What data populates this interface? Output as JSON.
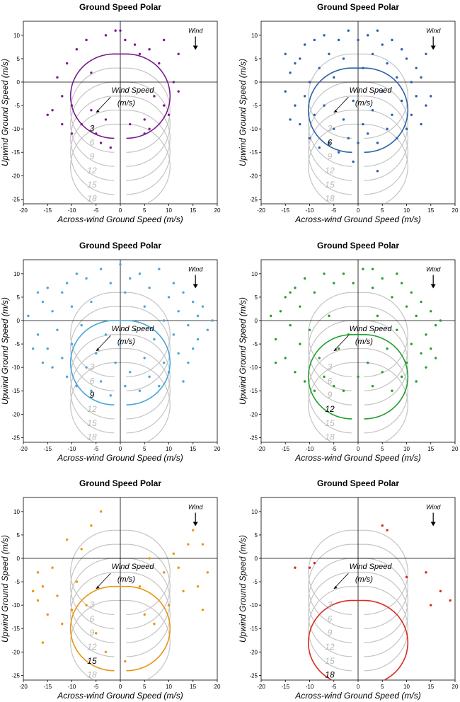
{
  "chart_data": [
    {
      "type": "scatter",
      "title": "Ground Speed Polar",
      "xlabel": "Across-wind Ground Speed (m/s)",
      "ylabel": "Upwind Ground Speed (m/s)",
      "xlim": [
        -20,
        20
      ],
      "ylim": [
        -26,
        13
      ],
      "xticks": [
        -20,
        -15,
        -10,
        -5,
        0,
        5,
        10,
        15,
        20
      ],
      "yticks": [
        10,
        5,
        0,
        -5,
        -10,
        -15,
        -20,
        -25
      ],
      "wind_label": "Wind",
      "annotation": [
        "Wind Speed",
        "(m/s)"
      ],
      "airspeed": 9,
      "reference_wind_speeds": [
        "3",
        "6",
        "9",
        "12",
        "15",
        "18"
      ],
      "highlight_wind_speed": "3",
      "color": "#7b1c8f",
      "points": [
        [
          -13,
          1
        ],
        [
          -12,
          -3
        ],
        [
          -11,
          4
        ],
        [
          -10,
          -5
        ],
        [
          -9,
          7
        ],
        [
          -8,
          -9
        ],
        [
          -7,
          9
        ],
        [
          -6,
          2
        ],
        [
          -5,
          -11
        ],
        [
          -4,
          -13
        ],
        [
          -3,
          10
        ],
        [
          -2,
          -14
        ],
        [
          -1,
          11
        ],
        [
          0,
          11
        ],
        [
          1,
          9
        ],
        [
          2,
          -9
        ],
        [
          3,
          8
        ],
        [
          4,
          6
        ],
        [
          5,
          -8
        ],
        [
          6,
          7
        ],
        [
          7,
          -3
        ],
        [
          8,
          4
        ],
        [
          9,
          -5
        ],
        [
          10,
          -7
        ],
        [
          11,
          0
        ],
        [
          12,
          -2
        ],
        [
          -14,
          -6
        ],
        [
          -15,
          -7
        ],
        [
          -10,
          -11
        ],
        [
          -12,
          -9
        ],
        [
          -3,
          -8
        ],
        [
          -6,
          -6
        ],
        [
          5,
          -11
        ],
        [
          6,
          -10
        ],
        [
          9,
          9
        ],
        [
          12,
          6
        ]
      ]
    },
    {
      "type": "scatter",
      "title": "Ground Speed Polar",
      "xlabel": "Across-wind Ground Speed (m/s)",
      "ylabel": "Upwind Ground Speed (m/s)",
      "xlim": [
        -20,
        20
      ],
      "ylim": [
        -26,
        13
      ],
      "xticks": [
        -20,
        -15,
        -10,
        -5,
        0,
        5,
        10,
        15,
        20
      ],
      "yticks": [
        10,
        5,
        0,
        -5,
        -10,
        -15,
        -20,
        -25
      ],
      "wind_label": "Wind",
      "annotation": [
        "Wind Speed",
        "(m/s)"
      ],
      "airspeed": 9,
      "reference_wind_speeds": [
        "3",
        "6",
        "9",
        "12",
        "15",
        "18"
      ],
      "highlight_wind_speed": "6",
      "color": "#2b62a8",
      "points": [
        [
          -14,
          2
        ],
        [
          -13,
          -5
        ],
        [
          -12,
          5
        ],
        [
          -12,
          -9
        ],
        [
          -11,
          8
        ],
        [
          -11,
          -3
        ],
        [
          -10,
          -12
        ],
        [
          -10,
          0
        ],
        [
          -9,
          9
        ],
        [
          -9,
          -7
        ],
        [
          -8,
          -14
        ],
        [
          -8,
          3
        ],
        [
          -7,
          10
        ],
        [
          -7,
          -5
        ],
        [
          -6,
          -13
        ],
        [
          -6,
          6
        ],
        [
          -5,
          -10
        ],
        [
          -5,
          1
        ],
        [
          -4,
          9
        ],
        [
          -4,
          -15
        ],
        [
          -3,
          -8
        ],
        [
          -3,
          5
        ],
        [
          -2,
          11
        ],
        [
          -2,
          -12
        ],
        [
          -1,
          -4
        ],
        [
          0,
          9
        ],
        [
          0,
          -13
        ],
        [
          1,
          3
        ],
        [
          1,
          -9
        ],
        [
          2,
          10
        ],
        [
          2,
          -11
        ],
        [
          3,
          -6
        ],
        [
          3,
          6
        ],
        [
          4,
          11
        ],
        [
          4,
          -13
        ],
        [
          5,
          -2
        ],
        [
          5,
          8
        ],
        [
          6,
          -10
        ],
        [
          6,
          4
        ],
        [
          7,
          9
        ],
        [
          7,
          -7
        ],
        [
          8,
          1
        ],
        [
          8,
          -12
        ],
        [
          9,
          7
        ],
        [
          9,
          -4
        ],
        [
          10,
          5
        ],
        [
          10,
          -10
        ],
        [
          11,
          0
        ],
        [
          11,
          -7
        ],
        [
          12,
          3
        ],
        [
          12,
          -3
        ],
        [
          13,
          -9
        ],
        [
          13,
          1
        ],
        [
          14,
          -5
        ],
        [
          14,
          6
        ],
        [
          -15,
          -2
        ],
        [
          -14,
          -8
        ],
        [
          -13,
          4
        ],
        [
          -15,
          6
        ],
        [
          4,
          -19
        ],
        [
          -1,
          -17
        ],
        [
          15,
          -3
        ]
      ]
    },
    {
      "type": "scatter",
      "title": "Ground Speed Polar",
      "xlabel": "Across-wind Ground Speed (m/s)",
      "ylabel": "Upwind Ground Speed (m/s)",
      "xlim": [
        -20,
        20
      ],
      "ylim": [
        -26,
        13
      ],
      "xticks": [
        -20,
        -15,
        -10,
        -5,
        0,
        5,
        10,
        15,
        20
      ],
      "yticks": [
        10,
        5,
        0,
        -5,
        -10,
        -15,
        -20,
        -25
      ],
      "wind_label": "Wind",
      "annotation": [
        "Wind Speed",
        "(m/s)"
      ],
      "airspeed": 9,
      "reference_wind_speeds": [
        "3",
        "6",
        "9",
        "12",
        "15",
        "18"
      ],
      "highlight_wind_speed": "9",
      "color": "#4aa6d6",
      "points": [
        [
          -19,
          1
        ],
        [
          -17,
          -3
        ],
        [
          -16,
          4
        ],
        [
          -15,
          -6
        ],
        [
          -14,
          2
        ],
        [
          -14,
          -10
        ],
        [
          -13,
          -2
        ],
        [
          -12,
          6
        ],
        [
          -12,
          -8
        ],
        [
          -11,
          8
        ],
        [
          -11,
          -12
        ],
        [
          -10,
          -5
        ],
        [
          -10,
          3
        ],
        [
          -9,
          10
        ],
        [
          -9,
          -14
        ],
        [
          -8,
          -1
        ],
        [
          -7,
          9
        ],
        [
          -7,
          -10
        ],
        [
          -6,
          -15
        ],
        [
          -6,
          4
        ],
        [
          -5,
          -7
        ],
        [
          -4,
          11
        ],
        [
          -4,
          -13
        ],
        [
          -3,
          -3
        ],
        [
          -2,
          8
        ],
        [
          -2,
          -16
        ],
        [
          -1,
          -9
        ],
        [
          0,
          12
        ],
        [
          0,
          -5
        ],
        [
          1,
          6
        ],
        [
          1,
          -14
        ],
        [
          2,
          -11
        ],
        [
          2,
          9
        ],
        [
          3,
          -2
        ],
        [
          4,
          10
        ],
        [
          4,
          -15
        ],
        [
          5,
          -8
        ],
        [
          5,
          3
        ],
        [
          6,
          -12
        ],
        [
          6,
          7
        ],
        [
          7,
          -4
        ],
        [
          8,
          11
        ],
        [
          8,
          -14
        ],
        [
          9,
          0
        ],
        [
          9,
          -9
        ],
        [
          10,
          5
        ],
        [
          10,
          -11
        ],
        [
          11,
          -3
        ],
        [
          11,
          8
        ],
        [
          12,
          -7
        ],
        [
          12,
          2
        ],
        [
          13,
          -13
        ],
        [
          13,
          6
        ],
        [
          14,
          -1
        ],
        [
          14,
          -9
        ],
        [
          15,
          4
        ],
        [
          15,
          -6
        ],
        [
          16,
          1
        ],
        [
          16,
          -4
        ],
        [
          17,
          3
        ],
        [
          18,
          -2
        ],
        [
          19,
          0
        ],
        [
          -18,
          -6
        ],
        [
          -16,
          -9
        ],
        [
          -17,
          6
        ],
        [
          -15,
          7
        ]
      ]
    },
    {
      "type": "scatter",
      "title": "Ground Speed Polar",
      "xlabel": "Across-wind Ground Speed (m/s)",
      "ylabel": "Upwind Ground Speed (m/s)",
      "xlim": [
        -20,
        20
      ],
      "ylim": [
        -26,
        13
      ],
      "xticks": [
        -20,
        -15,
        -10,
        -5,
        0,
        5,
        10,
        15,
        20
      ],
      "yticks": [
        10,
        5,
        0,
        -5,
        -10,
        -15,
        -20,
        -25
      ],
      "wind_label": "Wind",
      "annotation": [
        "Wind Speed",
        "(m/s)"
      ],
      "airspeed": 9,
      "reference_wind_speeds": [
        "3",
        "6",
        "9",
        "12",
        "15",
        "18"
      ],
      "highlight_wind_speed": "12",
      "color": "#22a02e",
      "points": [
        [
          -17,
          -4
        ],
        [
          -16,
          2
        ],
        [
          -15,
          -8
        ],
        [
          -15,
          5
        ],
        [
          -14,
          -1
        ],
        [
          -13,
          -11
        ],
        [
          -13,
          7
        ],
        [
          -12,
          -5
        ],
        [
          -12,
          3
        ],
        [
          -11,
          9
        ],
        [
          -11,
          -13
        ],
        [
          -10,
          -2
        ],
        [
          -9,
          6
        ],
        [
          -9,
          -15
        ],
        [
          -8,
          -8
        ],
        [
          -7,
          10
        ],
        [
          -7,
          -12
        ],
        [
          -6,
          1
        ],
        [
          -5,
          -14
        ],
        [
          -5,
          8
        ],
        [
          -4,
          -6
        ],
        [
          -3,
          10
        ],
        [
          -3,
          -15
        ],
        [
          -2,
          -3
        ],
        [
          -1,
          8
        ],
        [
          0,
          -12
        ],
        [
          1,
          11
        ],
        [
          2,
          -9
        ],
        [
          3,
          7
        ],
        [
          3,
          -14
        ],
        [
          4,
          1
        ],
        [
          5,
          -11
        ],
        [
          5,
          9
        ],
        [
          6,
          -6
        ],
        [
          7,
          5
        ],
        [
          7,
          -15
        ],
        [
          8,
          -2
        ],
        [
          9,
          -12
        ],
        [
          9,
          8
        ],
        [
          10,
          3
        ],
        [
          10,
          -9
        ],
        [
          11,
          -5
        ],
        [
          11,
          6
        ],
        [
          12,
          -13
        ],
        [
          12,
          1
        ],
        [
          13,
          -7
        ],
        [
          13,
          4
        ],
        [
          14,
          -3
        ],
        [
          14,
          -10
        ],
        [
          15,
          2
        ],
        [
          15,
          -6
        ],
        [
          16,
          -1
        ],
        [
          16,
          -8
        ],
        [
          17,
          0
        ],
        [
          -18,
          1
        ],
        [
          -17,
          -9
        ],
        [
          -14,
          6
        ],
        [
          3,
          11
        ],
        [
          8,
          10
        ]
      ]
    },
    {
      "type": "scatter",
      "title": "Ground Speed Polar",
      "xlabel": "Across-wind Ground Speed (m/s)",
      "ylabel": "Upwind Ground Speed (m/s)",
      "xlim": [
        -20,
        20
      ],
      "ylim": [
        -26,
        13
      ],
      "xticks": [
        -20,
        -15,
        -10,
        -5,
        0,
        5,
        10,
        15,
        20
      ],
      "yticks": [
        10,
        5,
        0,
        -5,
        -10,
        -15,
        -20,
        -25
      ],
      "wind_label": "Wind",
      "annotation": [
        "Wind Speed",
        "(m/s)"
      ],
      "airspeed": 9,
      "reference_wind_speeds": [
        "3",
        "6",
        "9",
        "12",
        "15",
        "18"
      ],
      "highlight_wind_speed": "15",
      "color": "#e8960f",
      "points": [
        [
          -17,
          -3
        ],
        [
          -17,
          -9
        ],
        [
          -16,
          -6
        ],
        [
          -16,
          -18
        ],
        [
          -15,
          -12
        ],
        [
          -14,
          -2
        ],
        [
          -13,
          -8
        ],
        [
          -12,
          -14
        ],
        [
          -11,
          4
        ],
        [
          -10,
          -11
        ],
        [
          -9,
          -5
        ],
        [
          -8,
          2
        ],
        [
          -7,
          -10
        ],
        [
          -6,
          7
        ],
        [
          -5,
          -16
        ],
        [
          -4,
          10
        ],
        [
          -3,
          -20
        ],
        [
          1,
          -22
        ],
        [
          4,
          -6
        ],
        [
          5,
          -12
        ],
        [
          6,
          0
        ],
        [
          7,
          -14
        ],
        [
          9,
          -3
        ],
        [
          10,
          -10
        ],
        [
          11,
          1
        ],
        [
          12,
          -2
        ],
        [
          13,
          -7
        ],
        [
          14,
          3
        ],
        [
          15,
          6
        ],
        [
          16,
          -6
        ],
        [
          17,
          3
        ],
        [
          17,
          -11
        ],
        [
          18,
          -3
        ],
        [
          -18,
          -7
        ]
      ]
    },
    {
      "type": "scatter",
      "title": "Ground Speed Polar",
      "xlabel": "Across-wind Ground Speed (m/s)",
      "ylabel": "Upwind Ground Speed (m/s)",
      "xlim": [
        -20,
        20
      ],
      "ylim": [
        -26,
        13
      ],
      "xticks": [
        -20,
        -15,
        -10,
        -5,
        0,
        5,
        10,
        15,
        20
      ],
      "yticks": [
        10,
        5,
        0,
        -5,
        -10,
        -15,
        -20,
        -25
      ],
      "wind_label": "Wind",
      "annotation": [
        "Wind Speed",
        "(m/s)"
      ],
      "airspeed": 9,
      "reference_wind_speeds": [
        "3",
        "6",
        "9",
        "12",
        "15",
        "18"
      ],
      "highlight_wind_speed": "18",
      "color": "#d82c20",
      "points": [
        [
          -13,
          -2
        ],
        [
          -10,
          -2
        ],
        [
          -9,
          -1
        ],
        [
          5,
          7
        ],
        [
          6,
          6
        ],
        [
          10,
          -4
        ],
        [
          14,
          -3
        ],
        [
          15,
          -10
        ],
        [
          17,
          -7
        ],
        [
          19,
          -9
        ]
      ]
    }
  ]
}
